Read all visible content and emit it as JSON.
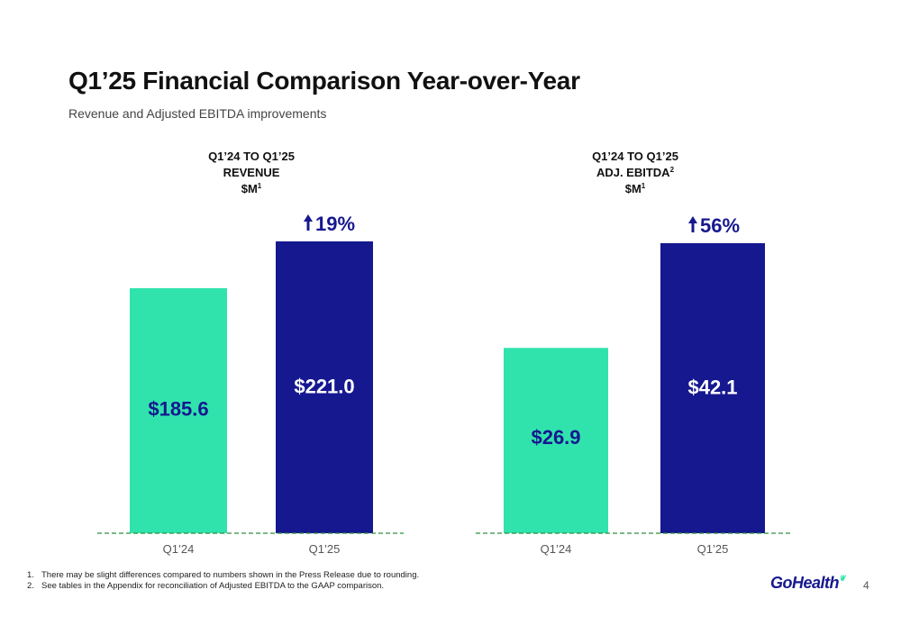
{
  "page": {
    "title": "Q1’25 Financial Comparison Year-over-Year",
    "subtitle": "Revenue and Adjusted EBITDA improvements",
    "footnotes": [
      {
        "num": "1.",
        "text": "There may be slight differences compared to numbers shown in the Press Release due to rounding."
      },
      {
        "num": "2.",
        "text": "See tables in the Appendix for reconciliation of Adjusted EBITDA to the GAAP comparison."
      }
    ],
    "logo_text": "GoHealth",
    "page_number": "4"
  },
  "colors": {
    "prior": "#30e3ad",
    "current": "#16188f",
    "baseline": "#2f8f3e"
  },
  "chart_data": [
    {
      "type": "bar",
      "title_lines": [
        "Q1’24 TO Q1’25",
        "REVENUE",
        "$M"
      ],
      "title_sup": [
        "",
        "",
        "1"
      ],
      "categories": [
        "Q1’24",
        "Q1’25"
      ],
      "values": [
        185.6,
        221.0
      ],
      "data_labels": [
        "$185.6",
        "$221.0"
      ],
      "change_label": "19%",
      "ylim": [
        0,
        240
      ]
    },
    {
      "type": "bar",
      "title_lines": [
        "Q1’24 TO Q1’25",
        "ADJ. EBITDA",
        "$M"
      ],
      "title_sup": [
        "",
        "2",
        "1"
      ],
      "categories": [
        "Q1’24",
        "Q1’25"
      ],
      "values": [
        26.9,
        42.1
      ],
      "data_labels": [
        "$26.9",
        "$42.1"
      ],
      "change_label": "56%",
      "ylim": [
        0,
        46
      ]
    }
  ]
}
